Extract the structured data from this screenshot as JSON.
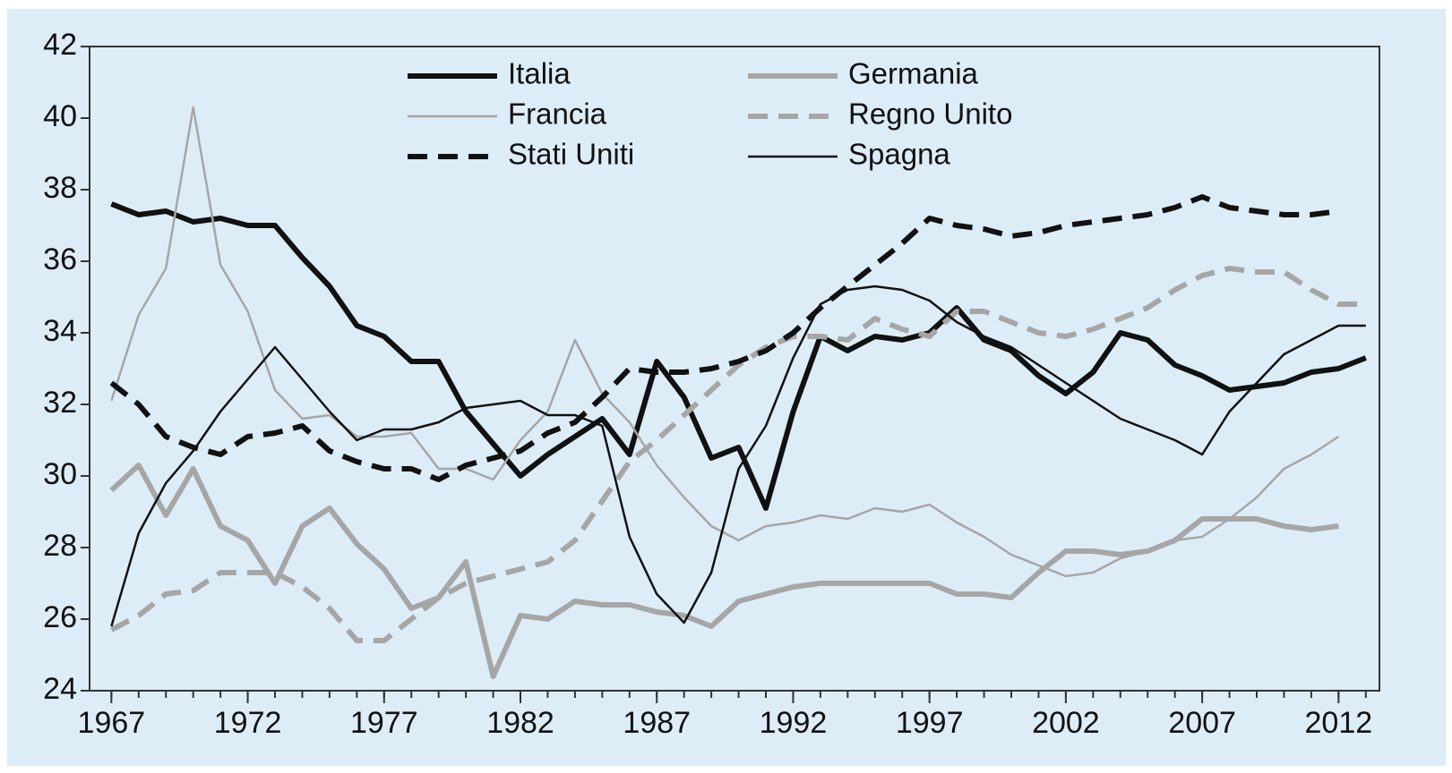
{
  "chart_data": {
    "type": "line",
    "x": [
      1967,
      1968,
      1969,
      1970,
      1971,
      1972,
      1973,
      1974,
      1975,
      1976,
      1977,
      1978,
      1979,
      1980,
      1981,
      1982,
      1983,
      1984,
      1985,
      1986,
      1987,
      1988,
      1989,
      1990,
      1991,
      1992,
      1993,
      1994,
      1995,
      1996,
      1997,
      1998,
      1999,
      2000,
      2001,
      2002,
      2003,
      2004,
      2005,
      2006,
      2007,
      2008,
      2009,
      2010,
      2011,
      2012,
      2013
    ],
    "series": [
      {
        "name": "Italia",
        "color": "#111111",
        "width": 6,
        "dash": false,
        "values": [
          37.6,
          37.3,
          37.4,
          37.1,
          37.2,
          37.0,
          37.0,
          36.1,
          35.3,
          34.2,
          33.9,
          33.2,
          33.2,
          31.8,
          30.9,
          30.0,
          30.6,
          31.1,
          31.6,
          30.6,
          33.2,
          32.2,
          30.5,
          30.8,
          29.1,
          31.8,
          33.9,
          33.5,
          33.9,
          33.8,
          34.0,
          34.7,
          33.8,
          33.5,
          32.8,
          32.3,
          32.9,
          34.0,
          33.8,
          33.1,
          32.8,
          32.4,
          32.5,
          32.6,
          32.9,
          33.0,
          33.3
        ]
      },
      {
        "name": "Germania",
        "color": "#a6a6a6",
        "width": 6,
        "dash": false,
        "values": [
          29.6,
          30.3,
          28.9,
          30.2,
          28.6,
          28.2,
          27.0,
          28.6,
          29.1,
          28.1,
          27.4,
          26.3,
          26.6,
          27.6,
          24.4,
          26.1,
          26.0,
          26.5,
          26.4,
          26.4,
          26.2,
          26.1,
          25.8,
          26.5,
          26.7,
          26.9,
          27.0,
          27.0,
          27.0,
          27.0,
          27.0,
          26.7,
          26.7,
          26.6,
          27.3,
          27.9,
          27.9,
          27.8,
          27.9,
          28.2,
          28.8,
          28.8,
          28.8,
          28.6,
          28.5,
          28.6,
          null
        ]
      },
      {
        "name": "Francia",
        "color": "#a6a6a6",
        "width": 2.5,
        "dash": false,
        "values": [
          32.1,
          34.5,
          35.8,
          40.3,
          35.9,
          34.6,
          32.4,
          31.6,
          31.7,
          31.1,
          31.1,
          31.2,
          30.2,
          30.2,
          29.9,
          31.0,
          31.8,
          33.8,
          32.3,
          31.5,
          30.3,
          29.4,
          28.6,
          28.2,
          28.6,
          28.7,
          28.9,
          28.8,
          29.1,
          29.0,
          29.2,
          28.7,
          28.3,
          27.8,
          27.5,
          27.2,
          27.3,
          27.7,
          27.9,
          28.2,
          28.3,
          28.8,
          29.4,
          30.2,
          30.6,
          31.1,
          null
        ]
      },
      {
        "name": "Regno Unito",
        "color": "#a6a6a6",
        "width": 6,
        "dash": true,
        "values": [
          25.7,
          26.1,
          26.7,
          26.8,
          27.3,
          27.3,
          27.3,
          26.9,
          26.3,
          25.4,
          25.4,
          26.0,
          26.6,
          27.0,
          27.2,
          27.4,
          27.6,
          28.2,
          29.3,
          30.4,
          31.0,
          31.7,
          32.4,
          33.1,
          33.6,
          33.9,
          33.9,
          33.8,
          34.4,
          34.1,
          33.9,
          34.6,
          34.6,
          34.3,
          34.0,
          33.9,
          34.1,
          34.4,
          34.7,
          35.2,
          35.6,
          35.8,
          35.7,
          35.7,
          35.2,
          34.8,
          34.8
        ]
      },
      {
        "name": "Stati Uniti",
        "color": "#111111",
        "width": 6,
        "dash": true,
        "values": [
          32.6,
          32.0,
          31.1,
          30.8,
          30.6,
          31.1,
          31.2,
          31.4,
          30.7,
          30.4,
          30.2,
          30.2,
          29.9,
          30.3,
          30.5,
          30.7,
          31.2,
          31.5,
          32.2,
          33.0,
          32.9,
          32.9,
          33.0,
          33.2,
          33.5,
          34.0,
          34.7,
          35.3,
          35.9,
          36.5,
          37.2,
          37.0,
          36.9,
          36.7,
          36.8,
          37.0,
          37.1,
          37.2,
          37.3,
          37.5,
          37.8,
          37.5,
          37.4,
          37.3,
          37.3,
          37.4,
          null
        ]
      },
      {
        "name": "Spagna",
        "color": "#111111",
        "width": 2.5,
        "dash": false,
        "values": [
          25.8,
          28.4,
          29.8,
          30.7,
          31.8,
          32.7,
          33.6,
          32.7,
          31.8,
          31.0,
          31.3,
          31.3,
          31.5,
          31.9,
          32.0,
          32.1,
          31.7,
          31.7,
          31.4,
          28.3,
          26.7,
          25.9,
          27.3,
          30.2,
          31.4,
          33.3,
          34.8,
          35.2,
          35.3,
          35.2,
          34.9,
          34.3,
          33.9,
          33.6,
          33.1,
          32.6,
          32.1,
          31.6,
          31.3,
          31.0,
          30.6,
          31.8,
          32.6,
          33.4,
          33.8,
          34.2,
          34.2
        ]
      }
    ],
    "xlim": [
      1966.2,
      2013.5
    ],
    "xticks": [
      1967,
      1972,
      1977,
      1982,
      1987,
      1992,
      1997,
      2002,
      2007,
      2012
    ],
    "ylim": [
      24,
      42
    ],
    "yticks": [
      24,
      26,
      28,
      30,
      32,
      34,
      36,
      38,
      40,
      42
    ],
    "legend": "top",
    "background": "#ddedf8"
  }
}
